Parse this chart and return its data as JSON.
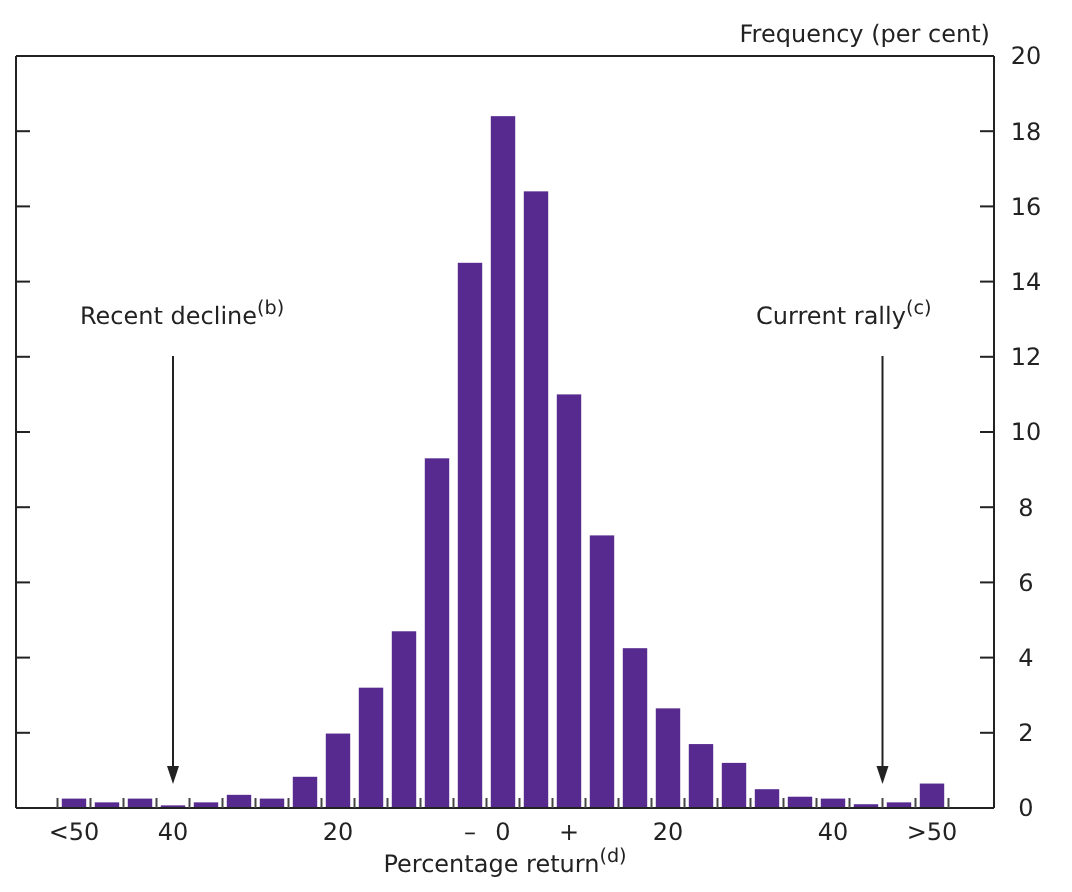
{
  "chart_data": {
    "type": "bar",
    "ylabel": "Frequency (per cent)",
    "xlabel": "Percentage return$^{(d)}$",
    "categories": [
      "<50",
      null,
      null,
      "40",
      null,
      null,
      null,
      null,
      "20",
      null,
      null,
      null,
      "–",
      "0",
      null,
      "+",
      null,
      null,
      "20",
      null,
      null,
      null,
      null,
      "40",
      null,
      null,
      ">50"
    ],
    "values": [
      0.25,
      0.15,
      0.25,
      0.07,
      0.15,
      0.35,
      0.25,
      0.83,
      1.98,
      3.2,
      4.7,
      9.3,
      14.5,
      18.4,
      16.4,
      11.0,
      7.25,
      4.25,
      2.65,
      1.7,
      1.2,
      0.5,
      0.3,
      0.25,
      0.1,
      0.15,
      0.65
    ],
    "color": "#562a8e",
    "ylim": [
      0,
      20
    ],
    "yticks": [
      0,
      2,
      4,
      6,
      8,
      10,
      12,
      14,
      16,
      18,
      20
    ],
    "grid": false,
    "annotations": [
      "Recent decline$^{(b)}$",
      "Current rally$^{(c)}$"
    ]
  }
}
